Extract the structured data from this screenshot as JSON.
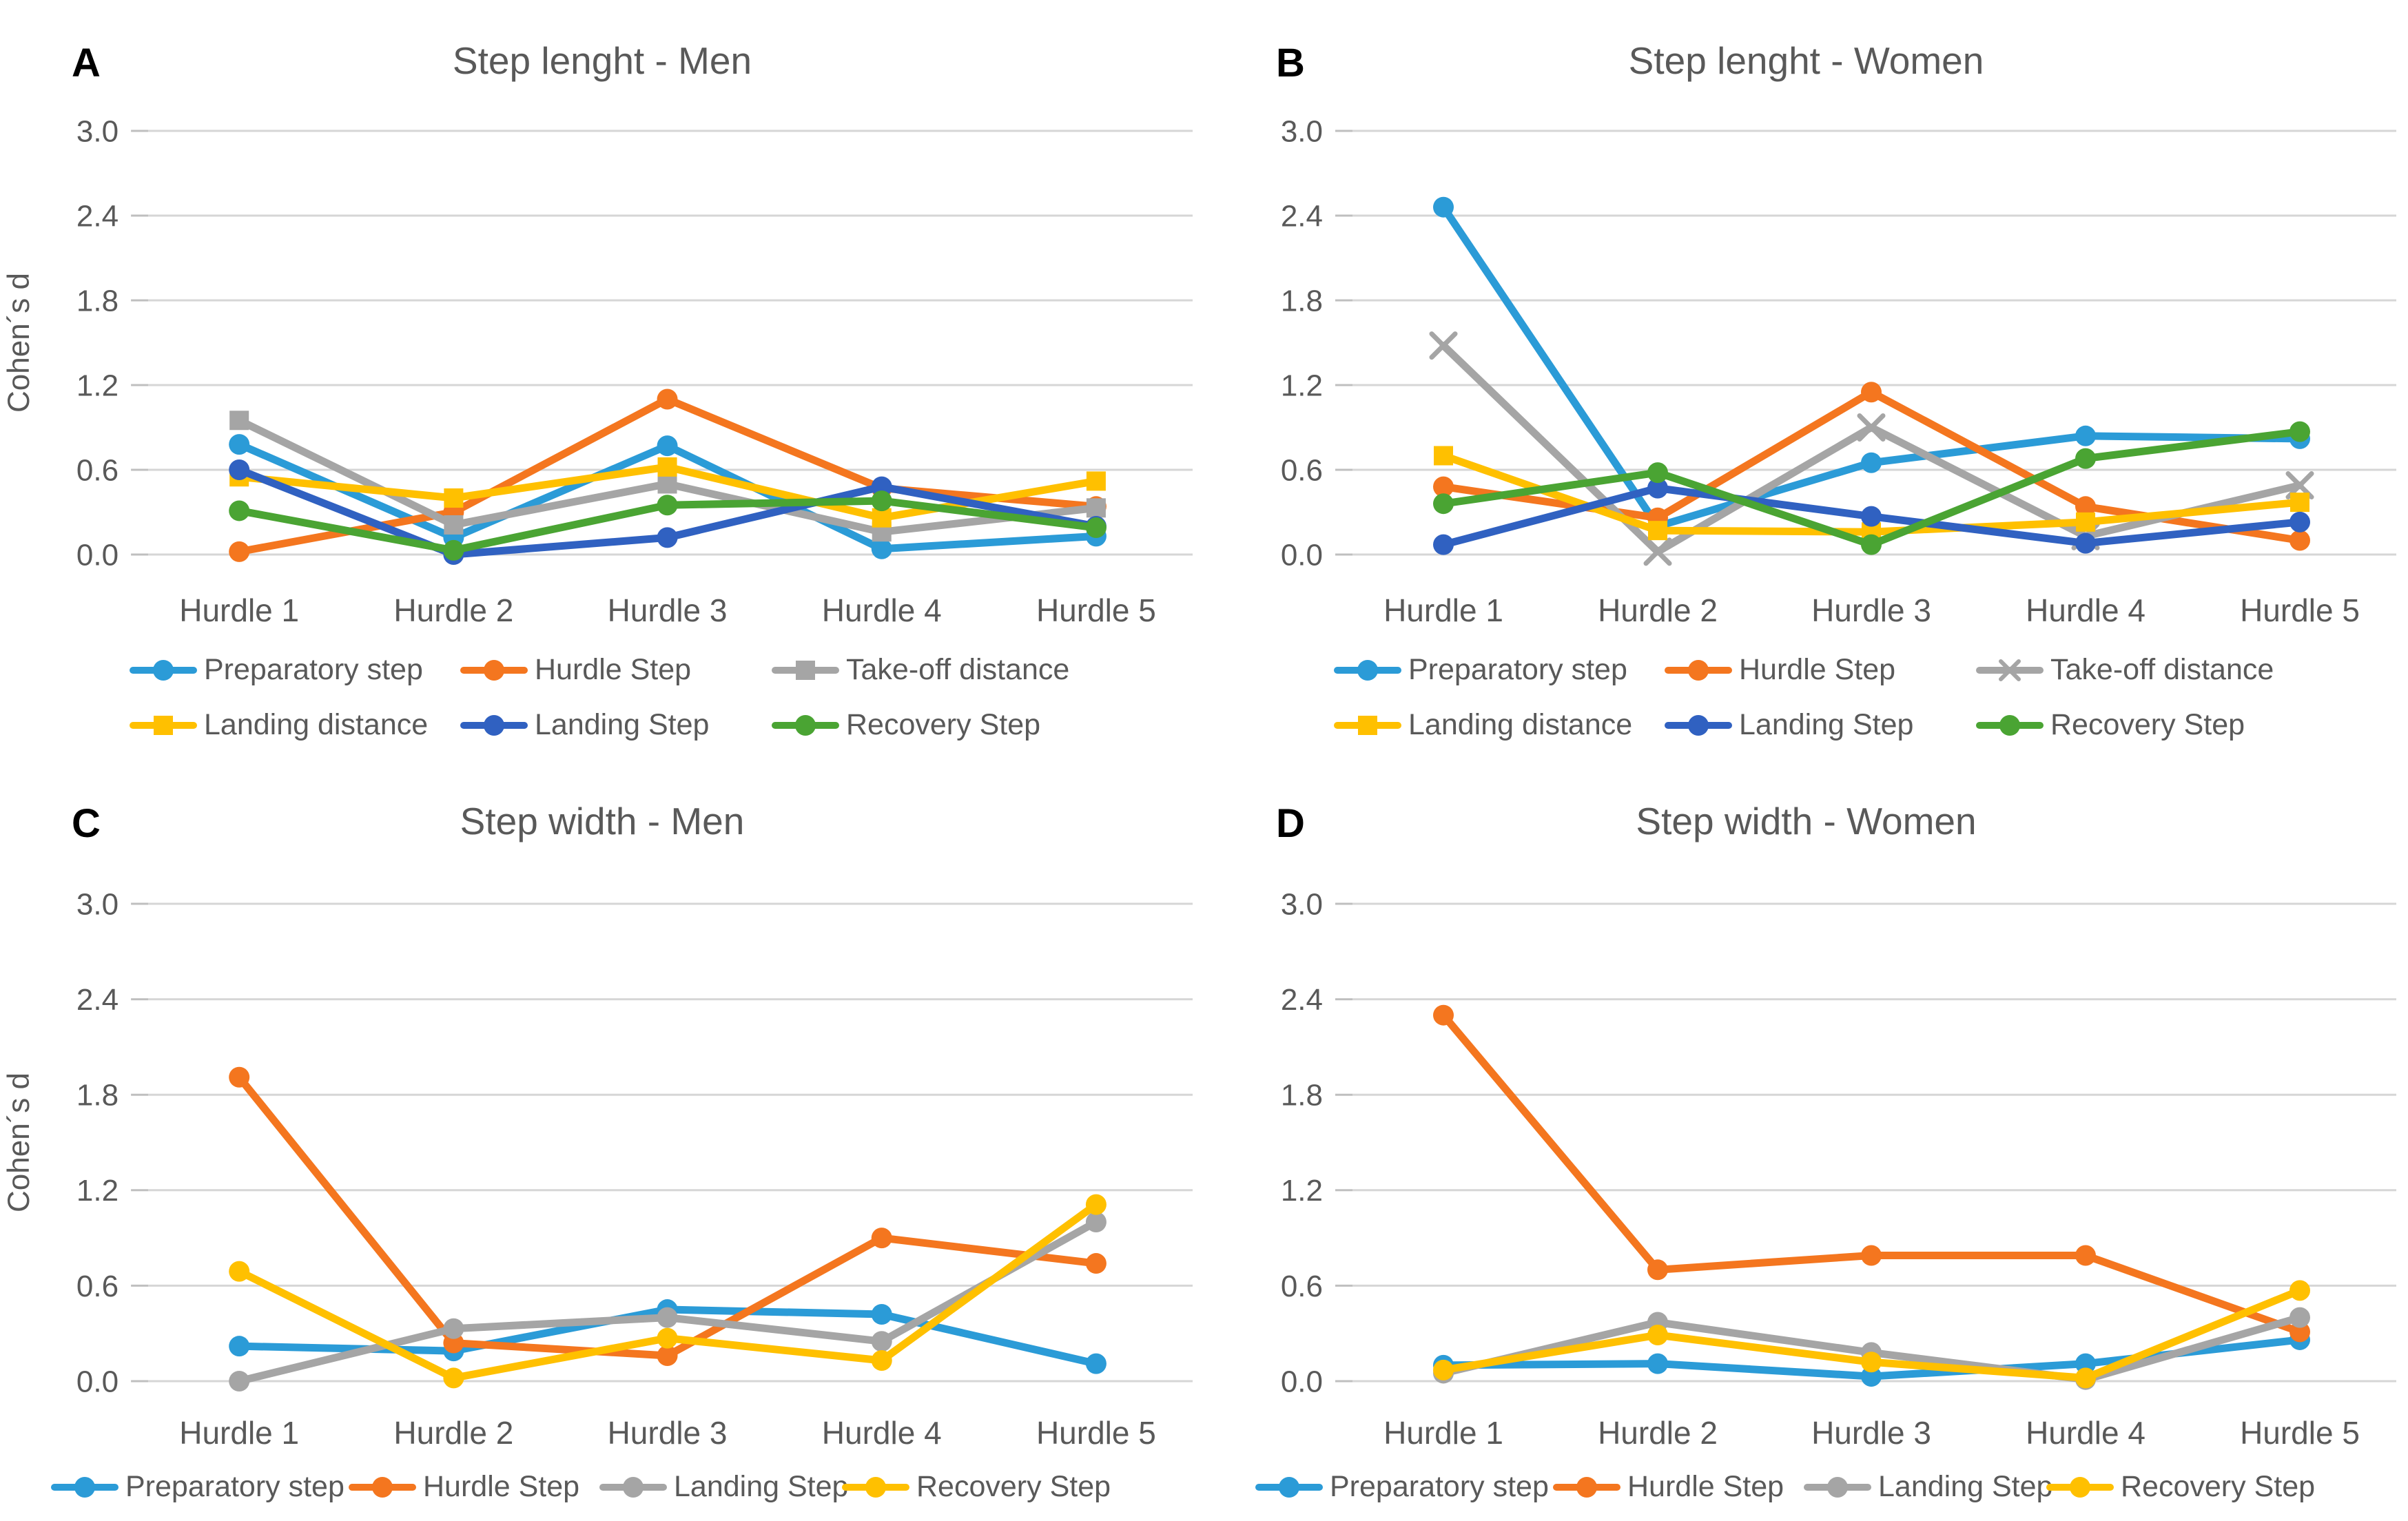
{
  "figure": {
    "ylabel": "Cohen´s d",
    "categories": [
      "Hurdle 1",
      "Hurdle 2",
      "Hurdle 3",
      "Hurdle 4",
      "Hurdle 5"
    ],
    "ytick_labels": [
      "3.0",
      "2.4",
      "1.8",
      "1.2",
      "0.6",
      "0.0"
    ],
    "colors": {
      "preparatory_blue": "#2B9BD7",
      "hurdle_orange": "#F4761F",
      "gray": "#A5A5A5",
      "yellow": "#FFC000",
      "landing_dark_blue": "#3061C1",
      "recovery_green": "#4AA433",
      "gridline": "#D6D6D6",
      "label_gray": "#595959"
    }
  },
  "chart_data": [
    {
      "panel_letter": "A",
      "title": "Step lenght - Men",
      "type": "line",
      "ylabel": "Cohen´s d",
      "xlabel": "",
      "ylim": [
        0.0,
        3.0
      ],
      "yticks": [
        3.0,
        2.4,
        1.8,
        1.2,
        0.6,
        0.0
      ],
      "grid": true,
      "legend_position": "bottom",
      "legend_rows": [
        [
          0,
          1,
          2
        ],
        [
          3,
          4,
          5
        ]
      ],
      "categories": [
        "Hurdle 1",
        "Hurdle 2",
        "Hurdle 3",
        "Hurdle 4",
        "Hurdle 5"
      ],
      "series": [
        {
          "name": "Preparatory step",
          "color": "#2B9BD7",
          "marker": "circle",
          "values": [
            0.78,
            0.12,
            0.77,
            0.04,
            0.13
          ]
        },
        {
          "name": "Hurdle Step",
          "color": "#F4761F",
          "marker": "circle",
          "values": [
            0.02,
            0.3,
            1.1,
            0.47,
            0.34
          ]
        },
        {
          "name": "Take-off distance",
          "color": "#A5A5A5",
          "marker": "square",
          "values": [
            0.95,
            0.21,
            0.5,
            0.16,
            0.33
          ]
        },
        {
          "name": "Landing distance",
          "color": "#FFC000",
          "marker": "square",
          "values": [
            0.55,
            0.4,
            0.62,
            0.26,
            0.52
          ]
        },
        {
          "name": "Landing Step",
          "color": "#3061C1",
          "marker": "circle",
          "values": [
            0.6,
            0.0,
            0.12,
            0.48,
            0.2
          ]
        },
        {
          "name": "Recovery Step",
          "color": "#4AA433",
          "marker": "circle",
          "values": [
            0.31,
            0.03,
            0.35,
            0.38,
            0.19
          ]
        }
      ]
    },
    {
      "panel_letter": "B",
      "title": "Step lenght - Women",
      "type": "line",
      "ylabel": "",
      "xlabel": "",
      "ylim": [
        0.0,
        3.0
      ],
      "yticks": [
        3.0,
        2.4,
        1.8,
        1.2,
        0.6,
        0.0
      ],
      "grid": true,
      "legend_position": "bottom",
      "legend_rows": [
        [
          0,
          1,
          2
        ],
        [
          3,
          4,
          5
        ]
      ],
      "categories": [
        "Hurdle 1",
        "Hurdle 2",
        "Hurdle 3",
        "Hurdle 4",
        "Hurdle 5"
      ],
      "series": [
        {
          "name": "Preparatory step",
          "color": "#2B9BD7",
          "marker": "circle",
          "values": [
            2.46,
            0.2,
            0.65,
            0.84,
            0.82
          ]
        },
        {
          "name": "Hurdle Step",
          "color": "#F4761F",
          "marker": "circle",
          "values": [
            0.48,
            0.26,
            1.15,
            0.34,
            0.1
          ]
        },
        {
          "name": "Take-off distance",
          "color": "#A5A5A5",
          "marker": "x",
          "values": [
            1.48,
            0.02,
            0.9,
            0.13,
            0.49
          ]
        },
        {
          "name": "Landing distance",
          "color": "#FFC000",
          "marker": "square",
          "values": [
            0.7,
            0.17,
            0.16,
            0.23,
            0.37
          ]
        },
        {
          "name": "Landing Step",
          "color": "#3061C1",
          "marker": "circle",
          "values": [
            0.07,
            0.47,
            0.27,
            0.08,
            0.23
          ]
        },
        {
          "name": "Recovery Step",
          "color": "#4AA433",
          "marker": "circle",
          "values": [
            0.36,
            0.58,
            0.07,
            0.68,
            0.87
          ]
        }
      ]
    },
    {
      "panel_letter": "C",
      "title": "Step width - Men",
      "type": "line",
      "ylabel": "Cohen´s d",
      "xlabel": "",
      "ylim": [
        0.0,
        3.0
      ],
      "yticks": [
        3.0,
        2.4,
        1.8,
        1.2,
        0.6,
        0.0
      ],
      "grid": true,
      "legend_position": "bottom",
      "legend_rows": [
        [
          0,
          1,
          2,
          3
        ]
      ],
      "categories": [
        "Hurdle 1",
        "Hurdle 2",
        "Hurdle 3",
        "Hurdle 4",
        "Hurdle 5"
      ],
      "series": [
        {
          "name": "Preparatory step",
          "color": "#2B9BD7",
          "marker": "circle",
          "values": [
            0.22,
            0.19,
            0.45,
            0.42,
            0.11
          ]
        },
        {
          "name": "Hurdle Step",
          "color": "#F4761F",
          "marker": "circle",
          "values": [
            1.91,
            0.24,
            0.16,
            0.9,
            0.74
          ]
        },
        {
          "name": "Landing Step",
          "color": "#A5A5A5",
          "marker": "circle",
          "values": [
            0.0,
            0.33,
            0.4,
            0.25,
            1.0
          ]
        },
        {
          "name": "Recovery Step",
          "color": "#FFC000",
          "marker": "circle",
          "values": [
            0.69,
            0.02,
            0.27,
            0.13,
            1.11
          ]
        }
      ]
    },
    {
      "panel_letter": "D",
      "title": "Step width - Women",
      "type": "line",
      "ylabel": "",
      "xlabel": "",
      "ylim": [
        0.0,
        3.0
      ],
      "yticks": [
        3.0,
        2.4,
        1.8,
        1.2,
        0.6,
        0.0
      ],
      "grid": true,
      "legend_position": "bottom",
      "legend_rows": [
        [
          0,
          1,
          2,
          3
        ]
      ],
      "categories": [
        "Hurdle 1",
        "Hurdle 2",
        "Hurdle 3",
        "Hurdle 4",
        "Hurdle 5"
      ],
      "series": [
        {
          "name": "Preparatory step",
          "color": "#2B9BD7",
          "marker": "circle",
          "values": [
            0.1,
            0.11,
            0.03,
            0.11,
            0.26
          ]
        },
        {
          "name": "Hurdle Step",
          "color": "#F4761F",
          "marker": "circle",
          "values": [
            2.3,
            0.7,
            0.79,
            0.79,
            0.31
          ]
        },
        {
          "name": "Landing Step",
          "color": "#A5A5A5",
          "marker": "circle",
          "values": [
            0.05,
            0.37,
            0.18,
            0.01,
            0.4
          ]
        },
        {
          "name": "Recovery Step",
          "color": "#FFC000",
          "marker": "circle",
          "values": [
            0.07,
            0.29,
            0.12,
            0.02,
            0.57
          ]
        }
      ]
    }
  ]
}
